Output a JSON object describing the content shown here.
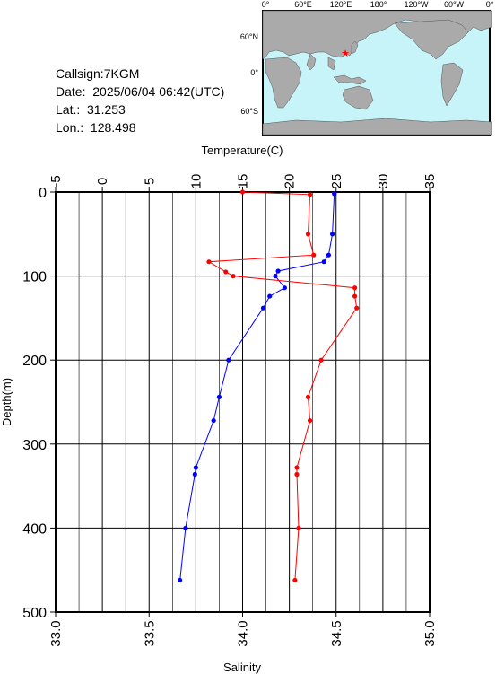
{
  "station": {
    "callsign": "Callsign:7KGM",
    "date": "Date:  2025/06/04 06:42(UTC)",
    "lat": "Lat.:  31.253",
    "lon": "Lon.:  128.498"
  },
  "map": {
    "top_labels": [
      "0°",
      "60°E",
      "120°E",
      "180°",
      "120°W",
      "60°W",
      "0°"
    ],
    "lat_labels": [
      "60°N",
      "0°",
      "60°S"
    ],
    "ocean_color": "#c6f4f8",
    "land_color": "#aaaaaa",
    "marker_color": "#ff0000"
  },
  "chart_data": {
    "type": "line",
    "title": "",
    "ylabel": "Depth(m)",
    "ylim": [
      0,
      500
    ],
    "y_inverted": true,
    "yticks": [
      0,
      100,
      200,
      300,
      400,
      500
    ],
    "top_axis": {
      "label": "Temperature(C)",
      "lim": [
        -5,
        35
      ],
      "ticks": [
        -5,
        0,
        5,
        10,
        15,
        20,
        25,
        30,
        35
      ]
    },
    "bottom_axis": {
      "label": "Salinity",
      "lim": [
        33.0,
        35.0
      ],
      "ticks": [
        "33.0",
        "33.5",
        "34.0",
        "34.5",
        "35.0"
      ]
    },
    "series": [
      {
        "kind": "temperature",
        "color": "#0000ff",
        "points": [
          [
            24.8,
            2
          ],
          [
            24.6,
            50
          ],
          [
            24.2,
            75
          ],
          [
            23.7,
            83
          ],
          [
            18.8,
            94
          ],
          [
            18.5,
            100
          ],
          [
            19.5,
            114
          ],
          [
            17.9,
            124
          ],
          [
            17.2,
            138
          ],
          [
            13.5,
            200
          ],
          [
            12.5,
            244
          ],
          [
            11.9,
            272
          ],
          [
            10.0,
            328
          ],
          [
            9.9,
            336
          ],
          [
            8.9,
            400
          ],
          [
            8.3,
            462
          ]
        ]
      },
      {
        "kind": "salinity",
        "color": "#ff0000",
        "points": [
          [
            34.0,
            0
          ],
          [
            34.36,
            3
          ],
          [
            34.35,
            50
          ],
          [
            34.38,
            75
          ],
          [
            33.82,
            83
          ],
          [
            33.91,
            95
          ],
          [
            33.95,
            100
          ],
          [
            34.6,
            114
          ],
          [
            34.6,
            124
          ],
          [
            34.61,
            138
          ],
          [
            34.42,
            200
          ],
          [
            34.35,
            244
          ],
          [
            34.36,
            272
          ],
          [
            34.29,
            328
          ],
          [
            34.29,
            336
          ],
          [
            34.3,
            400
          ],
          [
            34.28,
            462
          ]
        ]
      }
    ]
  }
}
